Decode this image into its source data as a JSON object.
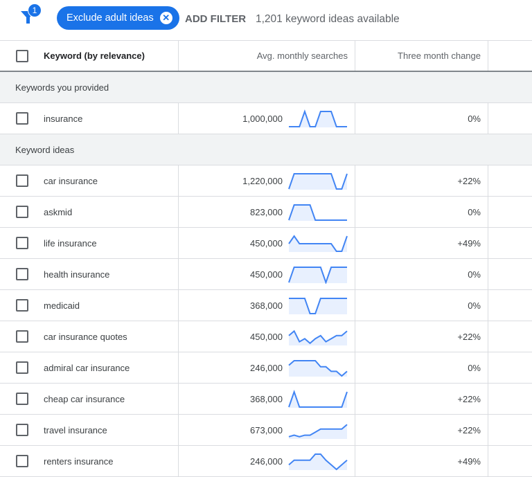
{
  "toolbar": {
    "filter_count": "1",
    "chip_label": "Exclude adult ideas",
    "add_filter": "ADD FILTER",
    "available": "1,201 keyword ideas available"
  },
  "header": {
    "keyword": "Keyword (by relevance)",
    "searches": "Avg. monthly searches",
    "change": "Three month change"
  },
  "sections": {
    "provided": "Keywords you provided",
    "ideas": "Keyword ideas"
  },
  "accent_color": "#1a73e8",
  "provided": [
    {
      "keyword": "insurance",
      "searches": "1,000,000",
      "change": "0%",
      "trend": [
        0,
        0,
        0,
        1,
        0,
        0,
        1,
        1,
        1,
        0,
        0,
        0
      ]
    }
  ],
  "ideas": [
    {
      "keyword": "car insurance",
      "searches": "1,220,000",
      "change": "+22%",
      "trend": [
        0,
        1,
        1,
        1,
        1,
        1,
        1,
        1,
        1,
        0,
        0,
        1
      ]
    },
    {
      "keyword": "askmid",
      "searches": "823,000",
      "change": "0%",
      "trend": [
        0,
        1,
        1,
        1,
        1,
        0,
        0,
        0,
        0,
        0,
        0,
        0
      ]
    },
    {
      "keyword": "life insurance",
      "searches": "450,000",
      "change": "+49%",
      "trend": [
        0.5,
        1,
        0.5,
        0.5,
        0.5,
        0.5,
        0.5,
        0.5,
        0.5,
        0,
        0,
        1
      ]
    },
    {
      "keyword": "health insurance",
      "searches": "450,000",
      "change": "0%",
      "trend": [
        0,
        1,
        1,
        1,
        1,
        1,
        1,
        0,
        1,
        1,
        1,
        1
      ]
    },
    {
      "keyword": "medicaid",
      "searches": "368,000",
      "change": "0%",
      "trend": [
        1,
        1,
        1,
        1,
        0,
        0,
        1,
        1,
        1,
        1,
        1,
        1
      ]
    },
    {
      "keyword": "car insurance quotes",
      "searches": "450,000",
      "change": "+22%",
      "trend": [
        0.6,
        0.9,
        0.2,
        0.4,
        0.1,
        0.4,
        0.6,
        0.2,
        0.4,
        0.6,
        0.6,
        0.9
      ]
    },
    {
      "keyword": "admiral car insurance",
      "searches": "246,000",
      "change": "0%",
      "trend": [
        0.7,
        1,
        1,
        1,
        1,
        1,
        0.6,
        0.6,
        0.3,
        0.3,
        0,
        0.3
      ]
    },
    {
      "keyword": "cheap car insurance",
      "searches": "368,000",
      "change": "+22%",
      "trend": [
        0,
        1,
        0,
        0,
        0,
        0,
        0,
        0,
        0,
        0,
        0,
        1
      ]
    },
    {
      "keyword": "travel insurance",
      "searches": "673,000",
      "change": "+22%",
      "trend": [
        0.1,
        0.2,
        0.1,
        0.2,
        0.2,
        0.4,
        0.6,
        0.6,
        0.6,
        0.6,
        0.6,
        0.9
      ]
    },
    {
      "keyword": "renters insurance",
      "searches": "246,000",
      "change": "+49%",
      "trend": [
        0.3,
        0.6,
        0.6,
        0.6,
        0.6,
        1,
        1,
        0.6,
        0.3,
        0,
        0.3,
        0.6
      ]
    }
  ]
}
